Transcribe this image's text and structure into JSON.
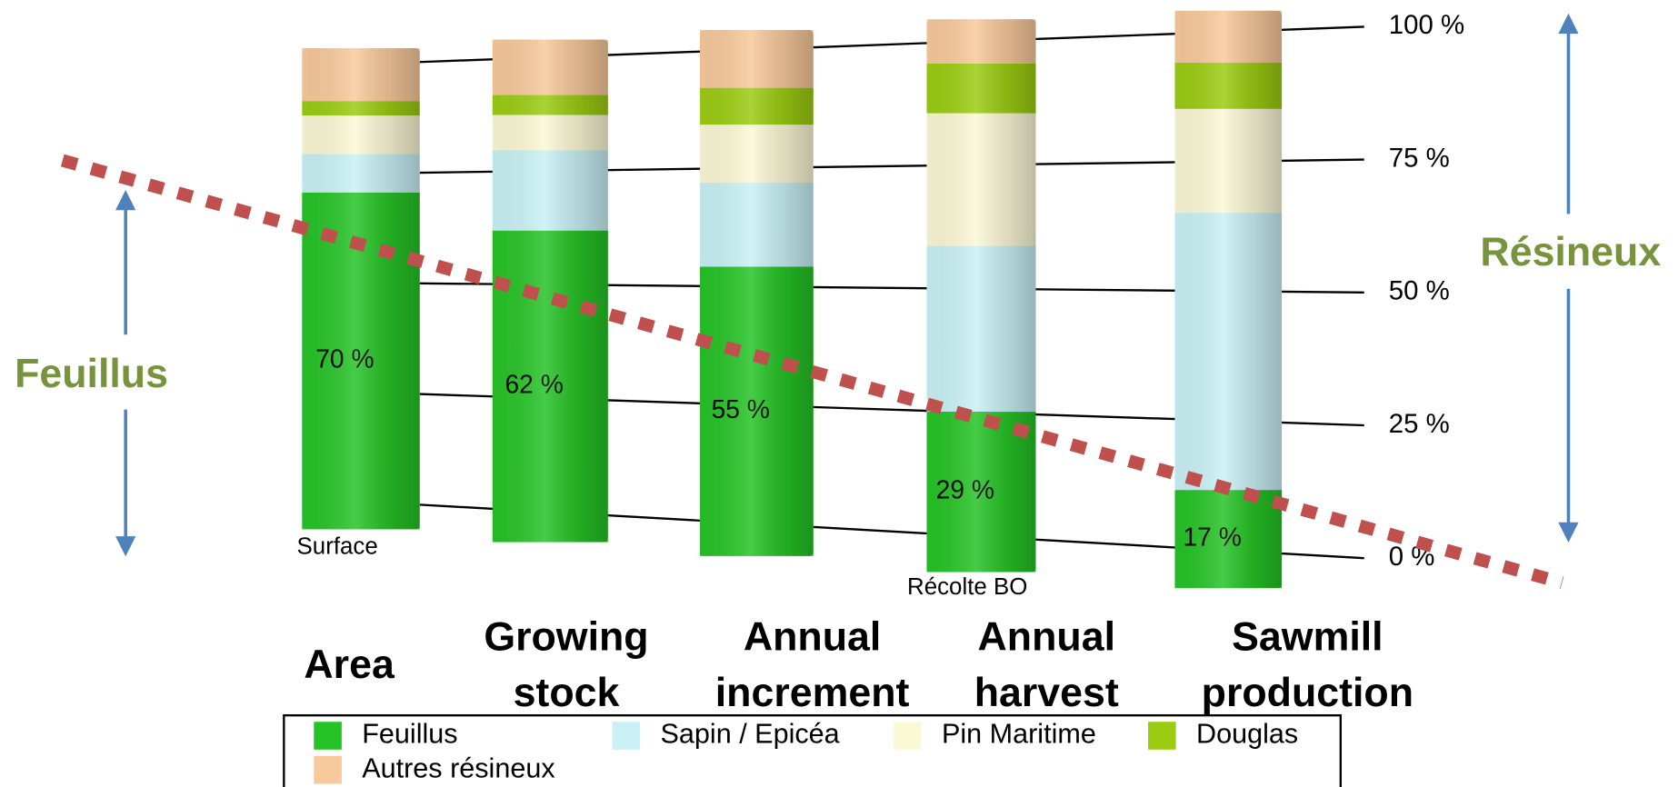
{
  "chart_data": {
    "type": "stacked_bar",
    "categories": [
      "Area",
      "Growing stock",
      "Annual increment",
      "Annual harvest",
      "Sawmill production"
    ],
    "series": [
      {
        "name": "Feuillus",
        "color": "#26c326",
        "values": [
          70,
          62,
          55,
          29,
          17
        ],
        "value_labels": [
          "70 %",
          "62 %",
          "55 %",
          "29 %",
          "17 %"
        ]
      },
      {
        "name": "Sapin / Epicéa",
        "color": "#c9f1f5",
        "values": [
          8,
          16,
          16,
          30,
          48
        ]
      },
      {
        "name": "Pin Maritime",
        "color": "#fbf8d6",
        "values": [
          8,
          7,
          11,
          24,
          18
        ]
      },
      {
        "name": "Douglas",
        "color": "#9bcc12",
        "values": [
          3,
          4,
          7,
          9,
          8
        ]
      },
      {
        "name": "Autres résineux",
        "color": "#f8c99b",
        "values": [
          11,
          11,
          11,
          8,
          9
        ]
      }
    ],
    "ylim": [
      0,
      100
    ],
    "yticks": [
      {
        "value": 0,
        "label": "0 %"
      },
      {
        "value": 25,
        "label": "25 %"
      },
      {
        "value": 50,
        "label": "50 %"
      },
      {
        "value": 75,
        "label": "75 %"
      },
      {
        "value": 100,
        "label": "100 %"
      }
    ],
    "grid": true,
    "annotations": [
      "Feuillus",
      "Résineux",
      "Surface",
      "Récolte BO"
    ]
  }
}
